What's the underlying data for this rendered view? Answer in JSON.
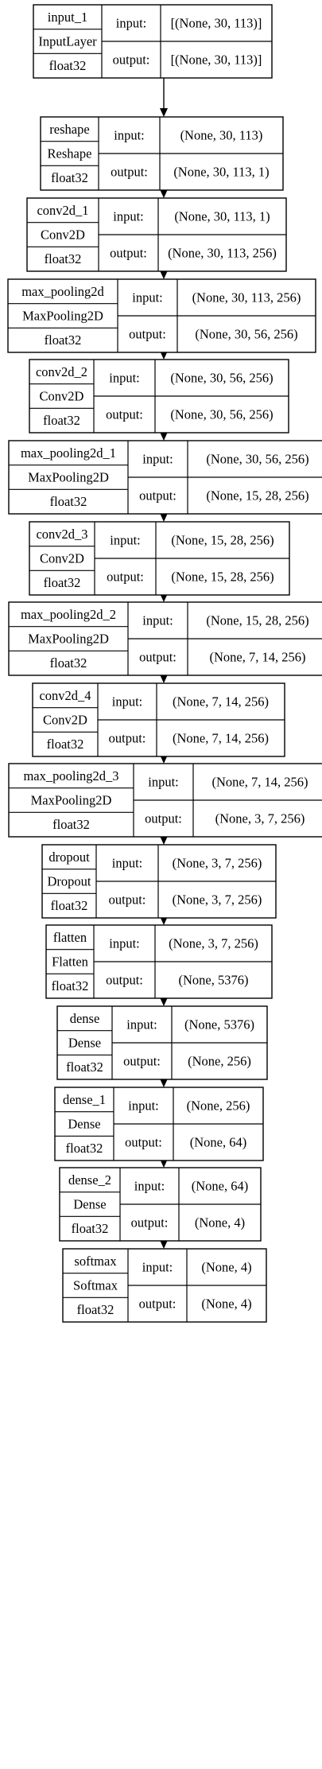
{
  "nodes": [
    {
      "name": "input_1",
      "type": "InputLayer",
      "dtype": "float32",
      "input_label": "input:",
      "input": "[(None, 30, 113)]",
      "output_label": "output:",
      "output": "[(None, 30, 113)]"
    },
    {
      "name": "reshape",
      "type": "Reshape",
      "dtype": "float32",
      "input_label": "input:",
      "input": "(None, 30, 113)",
      "output_label": "output:",
      "output": "(None, 30, 113, 1)"
    },
    {
      "name": "conv2d_1",
      "type": "Conv2D",
      "dtype": "float32",
      "input_label": "input:",
      "input": "(None, 30, 113, 1)",
      "output_label": "output:",
      "output": "(None, 30, 113, 256)"
    },
    {
      "name": "max_pooling2d",
      "type": "MaxPooling2D",
      "dtype": "float32",
      "input_label": "input:",
      "input": "(None, 30, 113, 256)",
      "output_label": "output:",
      "output": "(None, 30, 56, 256)"
    },
    {
      "name": "conv2d_2",
      "type": "Conv2D",
      "dtype": "float32",
      "input_label": "input:",
      "input": "(None, 30, 56, 256)",
      "output_label": "output:",
      "output": "(None, 30, 56, 256)"
    },
    {
      "name": "max_pooling2d_1",
      "type": "MaxPooling2D",
      "dtype": "float32",
      "input_label": "input:",
      "input": "(None, 30, 56, 256)",
      "output_label": "output:",
      "output": "(None, 15, 28, 256)"
    },
    {
      "name": "conv2d_3",
      "type": "Conv2D",
      "dtype": "float32",
      "input_label": "input:",
      "input": "(None, 15, 28, 256)",
      "output_label": "output:",
      "output": "(None, 15, 28, 256)"
    },
    {
      "name": "max_pooling2d_2",
      "type": "MaxPooling2D",
      "dtype": "float32",
      "input_label": "input:",
      "input": "(None, 15, 28, 256)",
      "output_label": "output:",
      "output": "(None, 7, 14, 256)"
    },
    {
      "name": "conv2d_4",
      "type": "Conv2D",
      "dtype": "float32",
      "input_label": "input:",
      "input": "(None, 7, 14, 256)",
      "output_label": "output:",
      "output": "(None, 7, 14, 256)"
    },
    {
      "name": "max_pooling2d_3",
      "type": "MaxPooling2D",
      "dtype": "float32",
      "input_label": "input:",
      "input": "(None, 7, 14, 256)",
      "output_label": "output:",
      "output": "(None, 3, 7, 256)"
    },
    {
      "name": "dropout",
      "type": "Dropout",
      "dtype": "float32",
      "input_label": "input:",
      "input": "(None, 3, 7, 256)",
      "output_label": "output:",
      "output": "(None, 3, 7, 256)"
    },
    {
      "name": "flatten",
      "type": "Flatten",
      "dtype": "float32",
      "input_label": "input:",
      "input": "(None, 3, 7, 256)",
      "output_label": "output:",
      "output": "(None, 5376)"
    },
    {
      "name": "dense",
      "type": "Dense",
      "dtype": "float32",
      "input_label": "input:",
      "input": "(None, 5376)",
      "output_label": "output:",
      "output": "(None, 256)"
    },
    {
      "name": "dense_1",
      "type": "Dense",
      "dtype": "float32",
      "input_label": "input:",
      "input": "(None, 256)",
      "output_label": "output:",
      "output": "(None, 64)"
    },
    {
      "name": "dense_2",
      "type": "Dense",
      "dtype": "float32",
      "input_label": "input:",
      "input": "(None, 64)",
      "output_label": "output:",
      "output": "(None, 4)"
    },
    {
      "name": "softmax",
      "type": "Softmax",
      "dtype": "float32",
      "input_label": "input:",
      "input": "(None, 4)",
      "output_label": "output:",
      "output": "(None, 4)"
    }
  ]
}
